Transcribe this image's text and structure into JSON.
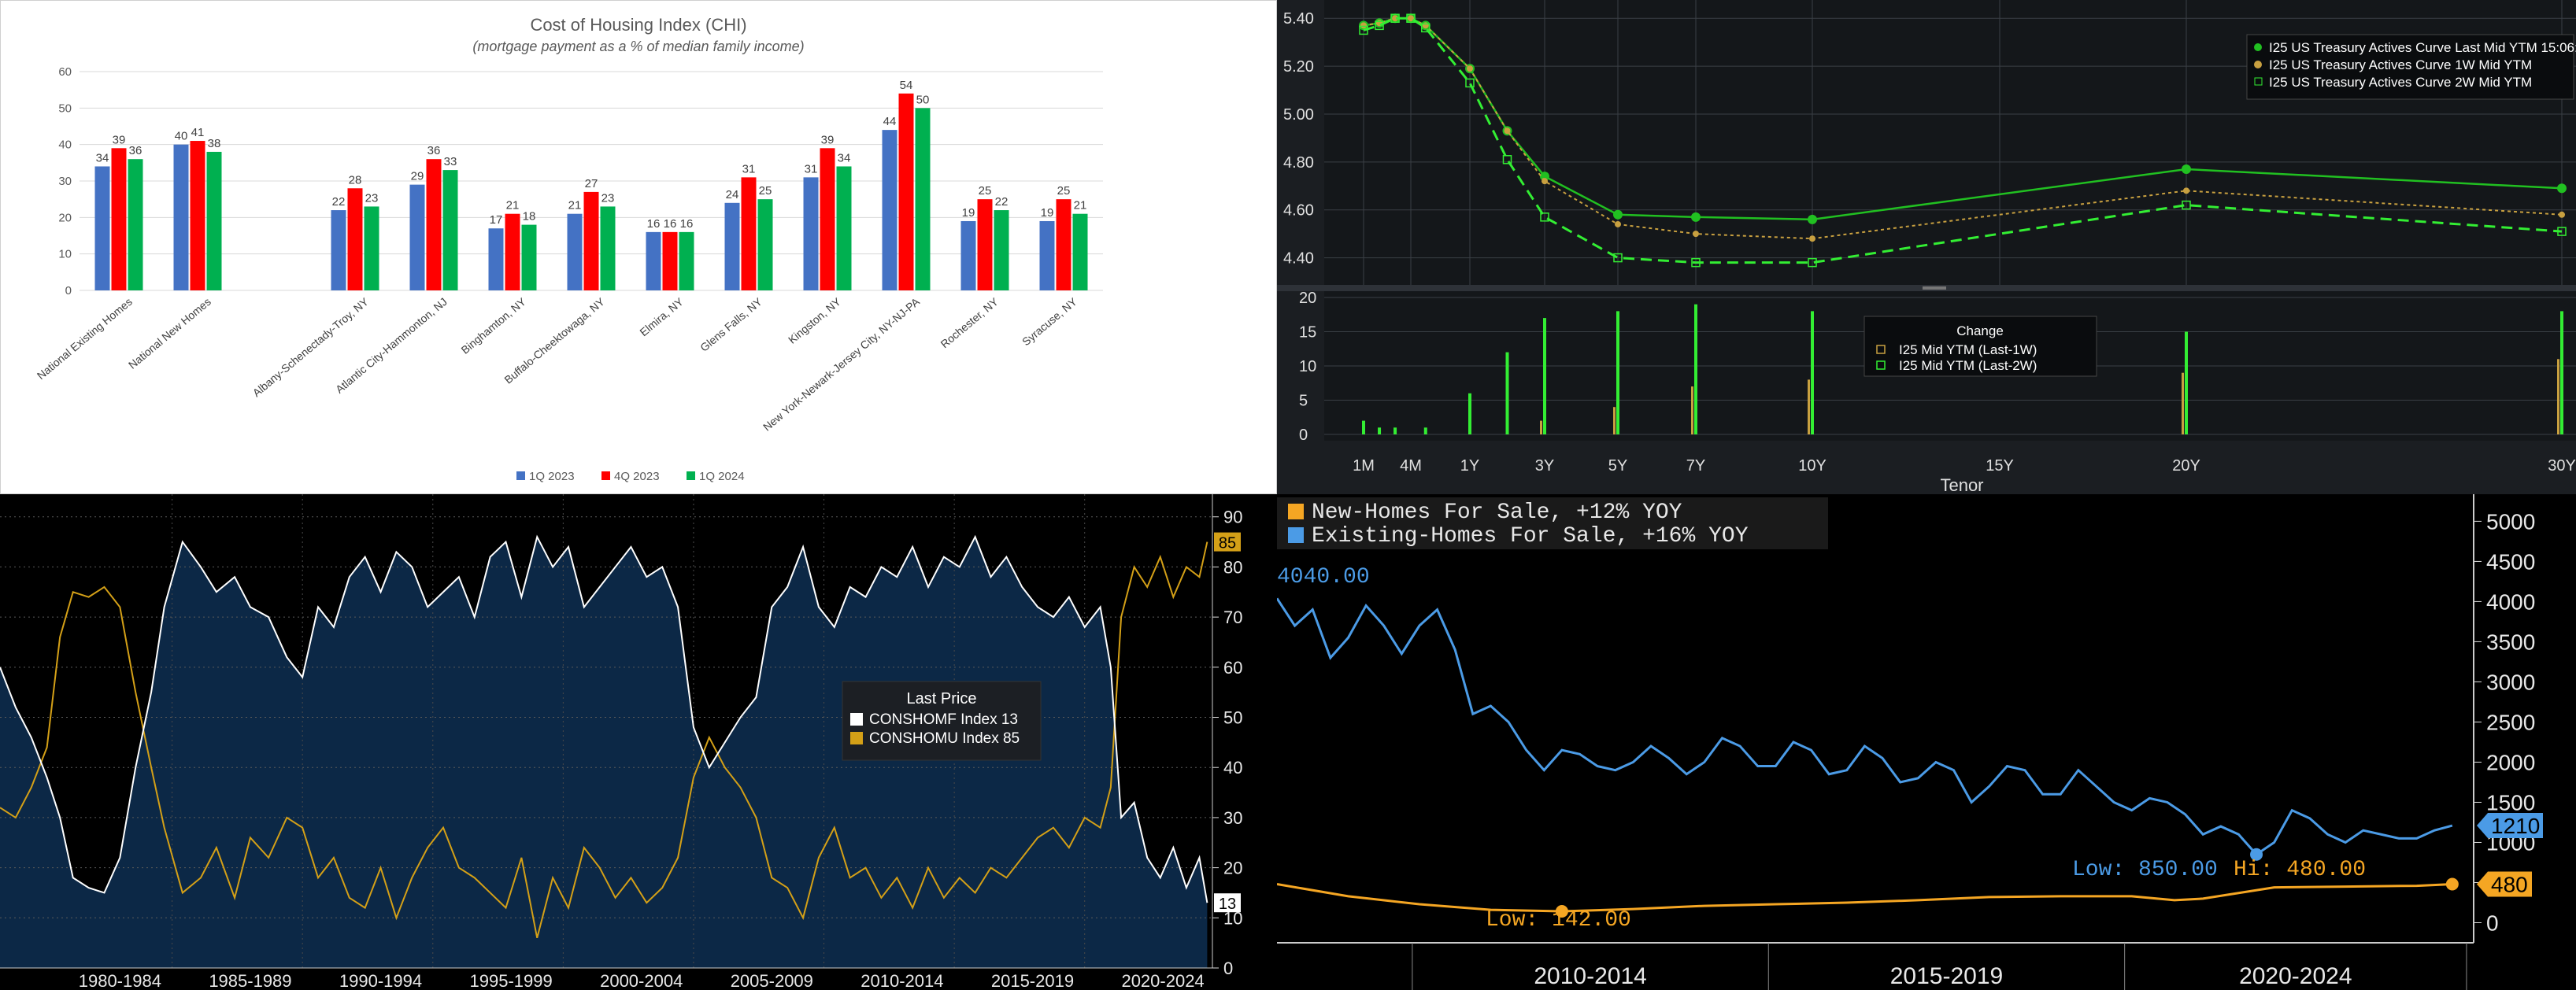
{
  "chi": {
    "title": "Cost of Housing Index (CHI)",
    "subtitle": "(mortgage payment as a % of median family income)",
    "chart_data": {
      "type": "bar",
      "title": "Cost of Housing Index (CHI)",
      "subtitle": "(mortgage payment as a % of median family income)",
      "ylim": [
        0,
        60
      ],
      "yticks": [
        0,
        10,
        20,
        30,
        40,
        50,
        60
      ],
      "categories": [
        "National Existing Homes",
        "National New Homes",
        "",
        "Albany-Schenectady-Troy, NY",
        "Atlantic City-Hammonton, NJ",
        "Binghamton, NY",
        "Buffalo-Cheektowaga, NY",
        "Elmira, NY",
        "Glens Falls, NY",
        "Kingston, NY",
        "New York-Newark-Jersey City, NY-NJ-PA",
        "Rochester, NY",
        "Syracuse, NY"
      ],
      "series": [
        {
          "name": "1Q 2023",
          "color": "#4472c4",
          "values": [
            34,
            40,
            null,
            22,
            29,
            17,
            21,
            16,
            24,
            31,
            44,
            19,
            19
          ]
        },
        {
          "name": "4Q 2023",
          "color": "#ff0000",
          "values": [
            39,
            41,
            null,
            28,
            36,
            21,
            27,
            16,
            31,
            39,
            54,
            25,
            25
          ]
        },
        {
          "name": "1Q 2024",
          "color": "#00b050",
          "values": [
            36,
            38,
            null,
            23,
            33,
            18,
            23,
            16,
            25,
            34,
            50,
            22,
            21
          ]
        }
      ],
      "grid": true,
      "legend": "bottom"
    }
  },
  "treasury": {
    "chart_data": [
      {
        "type": "line",
        "xlabel": "Tenor",
        "x_ticks": [
          "1M",
          "4M",
          "1Y",
          "3Y",
          "5Y",
          "7Y",
          "10Y",
          "15Y",
          "20Y",
          "30Y"
        ],
        "x_years": [
          0.0833,
          0.333,
          1,
          3,
          5,
          7,
          10,
          15,
          20,
          30
        ],
        "ylim": [
          4.3,
          5.45
        ],
        "yticks": [
          "4.40",
          "4.60",
          "4.80",
          "5.00",
          "5.20",
          "5.40"
        ],
        "legend": "top-right",
        "series": [
          {
            "name": "I25 US Treasury Actives Curve Last Mid YTM 15:06:00",
            "color": "#21c021",
            "x": [
              0.0833,
              0.1667,
              0.25,
              0.333,
              0.5,
              1,
              2,
              3,
              5,
              7,
              10,
              20,
              30
            ],
            "y": [
              5.37,
              5.38,
              5.4,
              5.4,
              5.37,
              5.19,
              4.93,
              4.74,
              4.58,
              4.57,
              4.56,
              4.77,
              4.69
            ]
          },
          {
            "name": "I25 US Treasury Actives Curve 1W Mid YTM",
            "color": "#c8a040",
            "x": [
              0.0833,
              0.1667,
              0.25,
              0.333,
              0.5,
              1,
              2,
              3,
              5,
              7,
              10,
              20,
              30
            ],
            "y": [
              5.37,
              5.38,
              5.4,
              5.4,
              5.37,
              5.19,
              4.93,
              4.72,
              4.54,
              4.5,
              4.48,
              4.68,
              4.58
            ]
          },
          {
            "name": "I25 US Treasury Actives Curve 2W Mid YTM",
            "color": "#33ee33",
            "x": [
              0.0833,
              0.1667,
              0.25,
              0.333,
              0.5,
              1,
              2,
              3,
              5,
              7,
              10,
              20,
              30
            ],
            "y": [
              5.35,
              5.37,
              5.4,
              5.4,
              5.36,
              5.13,
              4.81,
              4.57,
              4.4,
              4.38,
              4.38,
              4.62,
              4.51
            ]
          }
        ]
      },
      {
        "type": "bar",
        "legend_title": "Change",
        "ylim": [
          0,
          20
        ],
        "yticks": [
          "0",
          "5",
          "10",
          "15",
          "20"
        ],
        "x": [
          0.0833,
          0.1667,
          0.25,
          0.333,
          0.5,
          1,
          2,
          3,
          5,
          7,
          10,
          20,
          30
        ],
        "series": [
          {
            "name": "I25 Mid YTM (Last-1W)",
            "color": "#c8a040",
            "values": [
              0,
              0,
              0,
              0,
              0,
              0,
              0,
              2,
              4,
              7,
              8,
              9,
              11
            ]
          },
          {
            "name": "I25 Mid YTM (Last-2W)",
            "color": "#33ee33",
            "values": [
              2,
              1,
              1,
              0,
              1,
              6,
              12,
              17,
              18,
              19,
              18,
              15,
              18
            ]
          }
        ]
      }
    ]
  },
  "conshom": {
    "legend_title": "Last Price",
    "series_labels": [
      "CONSHOMF Index 13",
      "CONSHOMU Index 85"
    ],
    "last_labels": [
      "85",
      "13"
    ],
    "chart_data": {
      "type": "line",
      "x_ticks": [
        "1980-1984",
        "1985-1989",
        "1990-1994",
        "1995-1999",
        "2000-2004",
        "2005-2009",
        "2010-2014",
        "2015-2019",
        "2020-2024"
      ],
      "xlim": [
        1978,
        2024.5
      ],
      "ylim": [
        0,
        90
      ],
      "yticks": [
        0,
        10,
        20,
        30,
        40,
        50,
        60,
        70,
        80,
        90
      ],
      "legend": "center-right",
      "series": [
        {
          "name": "CONSHOMF Index",
          "last": 13,
          "color": "#ffffff",
          "x": [
            1978,
            1978.6,
            1979.2,
            1979.8,
            1980.3,
            1980.8,
            1981.4,
            1982,
            1982.6,
            1983.2,
            1983.8,
            1984.3,
            1985,
            1985.7,
            1986.3,
            1987,
            1987.6,
            1988.3,
            1989,
            1989.6,
            1990.2,
            1990.8,
            1991.4,
            1992,
            1992.6,
            1993.2,
            1993.8,
            1994.4,
            1995,
            1995.6,
            1996.2,
            1996.8,
            1997.4,
            1998,
            1998.6,
            1999.2,
            1999.8,
            2000.4,
            2001,
            2001.6,
            2002.2,
            2002.8,
            2003.4,
            2004,
            2004.6,
            2005.2,
            2005.8,
            2006.4,
            2007,
            2007.6,
            2008.2,
            2008.8,
            2009.4,
            2010,
            2010.6,
            2011.2,
            2011.8,
            2012.4,
            2013,
            2013.6,
            2014.2,
            2014.8,
            2015.4,
            2016,
            2016.6,
            2017.2,
            2017.8,
            2018.4,
            2019,
            2019.6,
            2020.2,
            2020.6,
            2021,
            2021.5,
            2022,
            2022.5,
            2023,
            2023.5,
            2024,
            2024.3
          ],
          "y": [
            60,
            52,
            46,
            38,
            30,
            18,
            16,
            15,
            22,
            40,
            55,
            72,
            85,
            80,
            75,
            78,
            72,
            70,
            62,
            58,
            72,
            68,
            78,
            82,
            75,
            83,
            80,
            72,
            75,
            78,
            70,
            82,
            85,
            74,
            86,
            80,
            84,
            72,
            76,
            80,
            84,
            78,
            80,
            72,
            48,
            40,
            45,
            50,
            54,
            72,
            76,
            84,
            72,
            68,
            76,
            74,
            80,
            78,
            84,
            76,
            82,
            80,
            86,
            78,
            82,
            76,
            72,
            70,
            74,
            68,
            72,
            60,
            30,
            33,
            22,
            18,
            24,
            16,
            22,
            13
          ]
        },
        {
          "name": "CONSHOMU Index",
          "last": 85,
          "color": "#d4a017",
          "x": [
            1978,
            1978.6,
            1979.2,
            1979.8,
            1980.3,
            1980.8,
            1981.4,
            1982,
            1982.6,
            1983.2,
            1983.8,
            1984.3,
            1985,
            1985.7,
            1986.3,
            1987,
            1987.6,
            1988.3,
            1989,
            1989.6,
            1990.2,
            1990.8,
            1991.4,
            1992,
            1992.6,
            1993.2,
            1993.8,
            1994.4,
            1995,
            1995.6,
            1996.2,
            1996.8,
            1997.4,
            1998,
            1998.6,
            1999.2,
            1999.8,
            2000.4,
            2001,
            2001.6,
            2002.2,
            2002.8,
            2003.4,
            2004,
            2004.6,
            2005.2,
            2005.8,
            2006.4,
            2007,
            2007.6,
            2008.2,
            2008.8,
            2009.4,
            2010,
            2010.6,
            2011.2,
            2011.8,
            2012.4,
            2013,
            2013.6,
            2014.2,
            2014.8,
            2015.4,
            2016,
            2016.6,
            2017.2,
            2017.8,
            2018.4,
            2019,
            2019.6,
            2020.2,
            2020.6,
            2021,
            2021.5,
            2022,
            2022.5,
            2023,
            2023.5,
            2024,
            2024.3
          ],
          "y": [
            32,
            30,
            36,
            44,
            66,
            75,
            74,
            76,
            72,
            55,
            40,
            28,
            15,
            18,
            24,
            14,
            26,
            22,
            30,
            28,
            18,
            22,
            14,
            12,
            20,
            10,
            18,
            24,
            28,
            20,
            18,
            15,
            12,
            22,
            6,
            18,
            12,
            24,
            20,
            14,
            18,
            13,
            16,
            22,
            38,
            46,
            40,
            36,
            30,
            18,
            16,
            10,
            22,
            28,
            18,
            20,
            14,
            18,
            12,
            20,
            14,
            18,
            15,
            20,
            18,
            22,
            26,
            28,
            24,
            30,
            28,
            36,
            70,
            80,
            76,
            82,
            74,
            80,
            78,
            85
          ]
        }
      ]
    }
  },
  "homes": {
    "legend": [
      "New-Homes For Sale, +12% YOY",
      "Existing-Homes For Sale, +16% YOY"
    ],
    "start_label": "4040.00",
    "low_high": {
      "existing_low": "Low: 850.00",
      "new_high": "Hi: 480.00",
      "new_low": "Low: 142.00"
    },
    "last_labels": [
      "1210",
      "480"
    ],
    "chart_data": {
      "type": "line",
      "x_ticks": [
        "2010-2014",
        "2015-2019",
        "2020-2024"
      ],
      "xlim": [
        2008,
        2024.8
      ],
      "ylim": [
        -250,
        5200
      ],
      "yticks": [
        "0",
        "500",
        "1000",
        "1500",
        "2000",
        "2500",
        "3000",
        "3500",
        "4000",
        "4500",
        "5000"
      ],
      "legend": "top-left",
      "series": [
        {
          "name": "Existing-Homes For Sale",
          "yoy": "+16%",
          "last": 1210,
          "color": "#4b9be6",
          "x": [
            2008,
            2008.25,
            2008.5,
            2008.75,
            2009,
            2009.25,
            2009.5,
            2009.75,
            2010,
            2010.25,
            2010.5,
            2010.75,
            2011,
            2011.25,
            2011.5,
            2011.75,
            2012,
            2012.25,
            2012.5,
            2012.75,
            2013,
            2013.25,
            2013.5,
            2013.75,
            2014,
            2014.25,
            2014.5,
            2014.75,
            2015,
            2015.25,
            2015.5,
            2015.75,
            2016,
            2016.25,
            2016.5,
            2016.75,
            2017,
            2017.25,
            2017.5,
            2017.75,
            2018,
            2018.25,
            2018.5,
            2018.75,
            2019,
            2019.25,
            2019.5,
            2019.75,
            2020,
            2020.25,
            2020.5,
            2020.75,
            2021,
            2021.25,
            2021.5,
            2021.75,
            2022,
            2022.25,
            2022.5,
            2022.75,
            2023,
            2023.25,
            2023.5,
            2023.75,
            2024,
            2024.25,
            2024.5
          ],
          "y": [
            4040,
            3700,
            3900,
            3300,
            3550,
            3950,
            3700,
            3350,
            3700,
            3900,
            3400,
            2600,
            2700,
            2500,
            2150,
            1900,
            2150,
            2100,
            1950,
            1900,
            2000,
            2200,
            2050,
            1850,
            2000,
            2300,
            2200,
            1950,
            1950,
            2250,
            2150,
            1850,
            1900,
            2200,
            2050,
            1750,
            1800,
            2000,
            1900,
            1500,
            1700,
            1950,
            1900,
            1600,
            1600,
            1900,
            1700,
            1500,
            1400,
            1550,
            1500,
            1350,
            1100,
            1200,
            1100,
            850,
            1000,
            1400,
            1300,
            1100,
            1000,
            1150,
            1100,
            1050,
            1050,
            1150,
            1210
          ]
        },
        {
          "name": "New-Homes For Sale",
          "yoy": "+12%",
          "last": 480,
          "color": "#f5a623",
          "x": [
            2008,
            2009,
            2010,
            2011,
            2012,
            2013,
            2014,
            2015,
            2016,
            2017,
            2018,
            2019,
            2020,
            2020.6,
            2021,
            2022,
            2023,
            2024,
            2024.5
          ],
          "y": [
            480,
            330,
            230,
            160,
            142,
            170,
            210,
            230,
            250,
            280,
            320,
            330,
            330,
            280,
            300,
            440,
            450,
            460,
            480
          ]
        }
      ]
    }
  }
}
